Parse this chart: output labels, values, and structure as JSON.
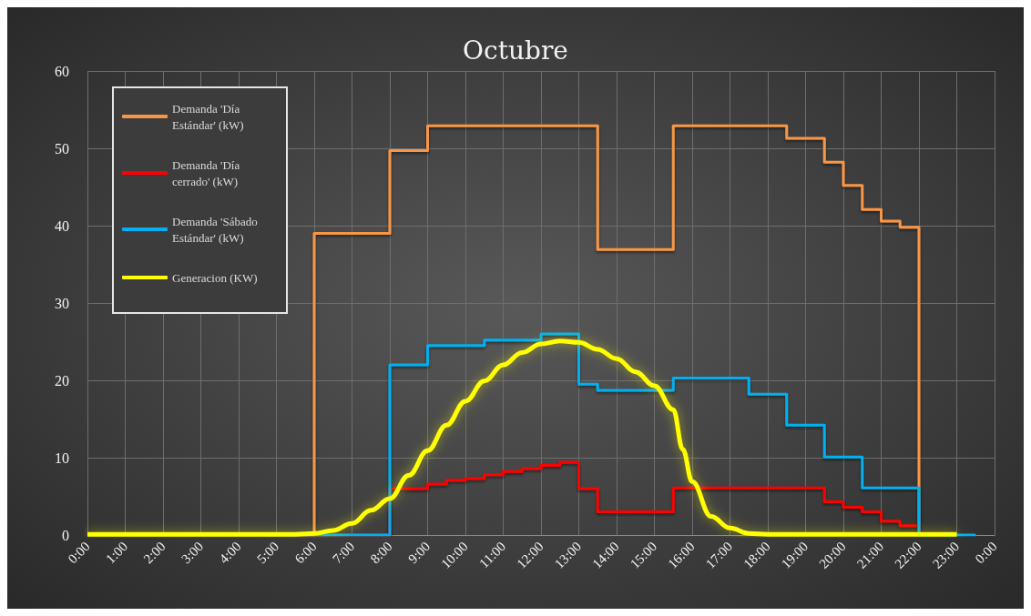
{
  "chart_data": {
    "type": "step",
    "title": "Octubre",
    "xlim": [
      0,
      24
    ],
    "xticks": [
      {
        "value": 0,
        "label": "0:00"
      },
      {
        "value": 1,
        "label": "1:00"
      },
      {
        "value": 2,
        "label": "2:00"
      },
      {
        "value": 3,
        "label": "3:00"
      },
      {
        "value": 4,
        "label": "4:00"
      },
      {
        "value": 5,
        "label": "5:00"
      },
      {
        "value": 6,
        "label": "6:00"
      },
      {
        "value": 7,
        "label": "7:00"
      },
      {
        "value": 8,
        "label": "8:00"
      },
      {
        "value": 9,
        "label": "9:00"
      },
      {
        "value": 10,
        "label": "10:00"
      },
      {
        "value": 11,
        "label": "11:00"
      },
      {
        "value": 12,
        "label": "12:00"
      },
      {
        "value": 13,
        "label": "13:00"
      },
      {
        "value": 14,
        "label": "14:00"
      },
      {
        "value": 15,
        "label": "15:00"
      },
      {
        "value": 16,
        "label": "16:00"
      },
      {
        "value": 17,
        "label": "17:00"
      },
      {
        "value": 18,
        "label": "18:00"
      },
      {
        "value": 19,
        "label": "19:00"
      },
      {
        "value": 20,
        "label": "20:00"
      },
      {
        "value": 21,
        "label": "21:00"
      },
      {
        "value": 22,
        "label": "22:00"
      },
      {
        "value": 23,
        "label": "23:00"
      },
      {
        "value": 24,
        "label": "0:00"
      }
    ],
    "ylim": [
      0,
      60
    ],
    "yticks": [
      0,
      10,
      20,
      30,
      40,
      50,
      60
    ],
    "grid": true,
    "legend": "top left",
    "series": [
      {
        "name": "Demanda 'Día Estándar' (kW)",
        "color": "#f79646",
        "x": [
          0,
          6,
          8,
          9,
          13.5,
          15.5,
          18.5,
          19.5,
          20,
          20.5,
          21,
          21.5,
          22
        ],
        "values": [
          0,
          39,
          49.7,
          52.9,
          36.9,
          52.9,
          51.3,
          48.2,
          45.2,
          42.1,
          40.6,
          39.8,
          0
        ]
      },
      {
        "name": "Demanda 'Día cerrado' (kW)",
        "color": "#ff0000",
        "x": [
          0,
          8,
          9,
          9.5,
          10,
          10.5,
          11,
          11.5,
          12,
          12.5,
          13,
          13.5,
          15.5,
          19.5,
          20,
          20.5,
          21,
          21.5,
          22
        ],
        "values": [
          0,
          6.0,
          6.6,
          7.1,
          7.3,
          7.8,
          8.2,
          8.6,
          9.0,
          9.4,
          6.0,
          3.0,
          6.1,
          4.3,
          3.6,
          3.0,
          1.8,
          1.2,
          0
        ]
      },
      {
        "name": "Demanda 'Sábado Estándar' (kW)",
        "color": "#00b0f0",
        "x": [
          0,
          8,
          9,
          10.5,
          12,
          13,
          13.5,
          15.5,
          17.5,
          18.5,
          19.5,
          20.5,
          22,
          23.5
        ],
        "values": [
          0,
          22.0,
          24.5,
          25.2,
          26.0,
          19.5,
          18.7,
          20.3,
          18.2,
          14.2,
          10.1,
          6.1,
          0,
          0
        ]
      },
      {
        "name": "Generacion (KW)",
        "type": "line",
        "color": "#ffff00",
        "x": [
          0,
          5.5,
          6,
          6.5,
          7,
          7.5,
          8,
          8.5,
          9,
          9.5,
          10,
          10.5,
          11,
          11.5,
          12,
          12.5,
          13,
          13.5,
          14,
          14.5,
          15,
          15.5,
          15.75,
          16,
          16.5,
          17,
          17.5,
          18,
          20,
          23
        ],
        "values": [
          0.1,
          0.1,
          0.2,
          0.6,
          1.5,
          3.2,
          4.7,
          7.7,
          10.9,
          14.2,
          17.3,
          19.9,
          22.0,
          23.6,
          24.7,
          25.1,
          24.9,
          24.0,
          22.8,
          21.1,
          19.3,
          16.2,
          11.1,
          6.9,
          2.4,
          0.9,
          0.2,
          0.1,
          0.1,
          0.1
        ]
      }
    ]
  }
}
